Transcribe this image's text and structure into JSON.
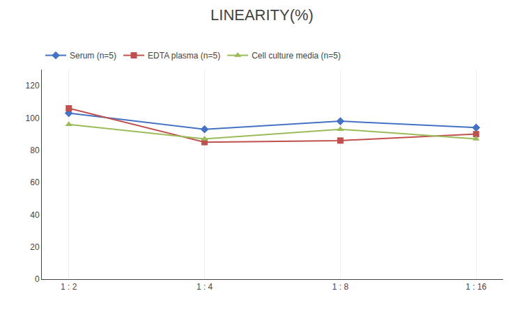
{
  "chart_data": {
    "type": "line",
    "title": "LINEARITY(%)",
    "categories": [
      "1 : 2",
      "1 : 4",
      "1 : 8",
      "1 : 16"
    ],
    "series": [
      {
        "name": "Serum (n=5)",
        "color": "#4472C4",
        "marker": "diamond",
        "values": [
          103,
          93,
          98,
          94
        ]
      },
      {
        "name": "EDTA plasma (n=5)",
        "color": "#C0504D",
        "marker": "square",
        "values": [
          106,
          85,
          86,
          90
        ]
      },
      {
        "name": "Cell culture media (n=5)",
        "color": "#9BBB59",
        "marker": "triangle-up",
        "values": [
          96,
          87,
          93,
          87
        ]
      }
    ],
    "ylim": [
      0,
      130
    ],
    "yticks": [
      0,
      20,
      40,
      60,
      80,
      100,
      120
    ],
    "grid": "x",
    "legend": "top left"
  }
}
